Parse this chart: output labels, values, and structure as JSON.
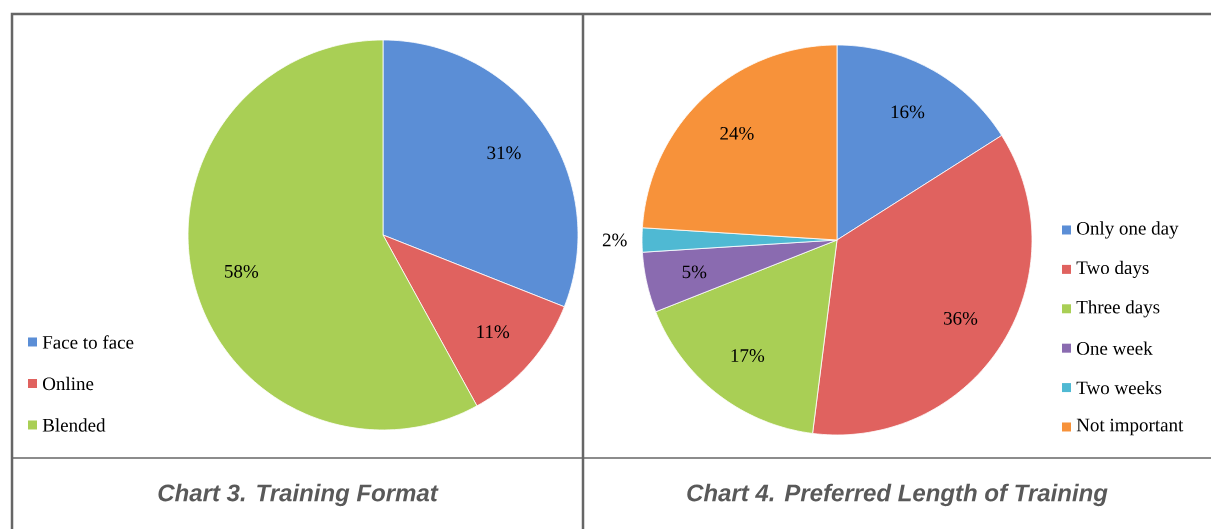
{
  "chart_data": [
    {
      "type": "pie",
      "title": "Chart 3. Training Format",
      "categories": [
        "Face to face",
        "Online",
        "Blended"
      ],
      "values": [
        31,
        11,
        58
      ],
      "colors": [
        "#5b8ed6",
        "#e0625f",
        "#a9cf55"
      ],
      "value_labels": [
        "31%",
        "11%",
        "58%"
      ],
      "legend": "bottom left"
    },
    {
      "type": "pie",
      "title": "Chart 4. Preferred Length of Training",
      "categories": [
        "Only one day",
        "Two days",
        "Three days",
        "One week",
        "Two weeks",
        "Not important"
      ],
      "values": [
        16,
        36,
        17,
        5,
        2,
        24
      ],
      "colors": [
        "#5b8ed6",
        "#e0625f",
        "#a9cf55",
        "#8a6bb0",
        "#4fb9d3",
        "#f7923a"
      ],
      "value_labels": [
        "16%",
        "36%",
        "17%",
        "5%",
        "2%",
        "24%"
      ],
      "legend": "right"
    }
  ]
}
